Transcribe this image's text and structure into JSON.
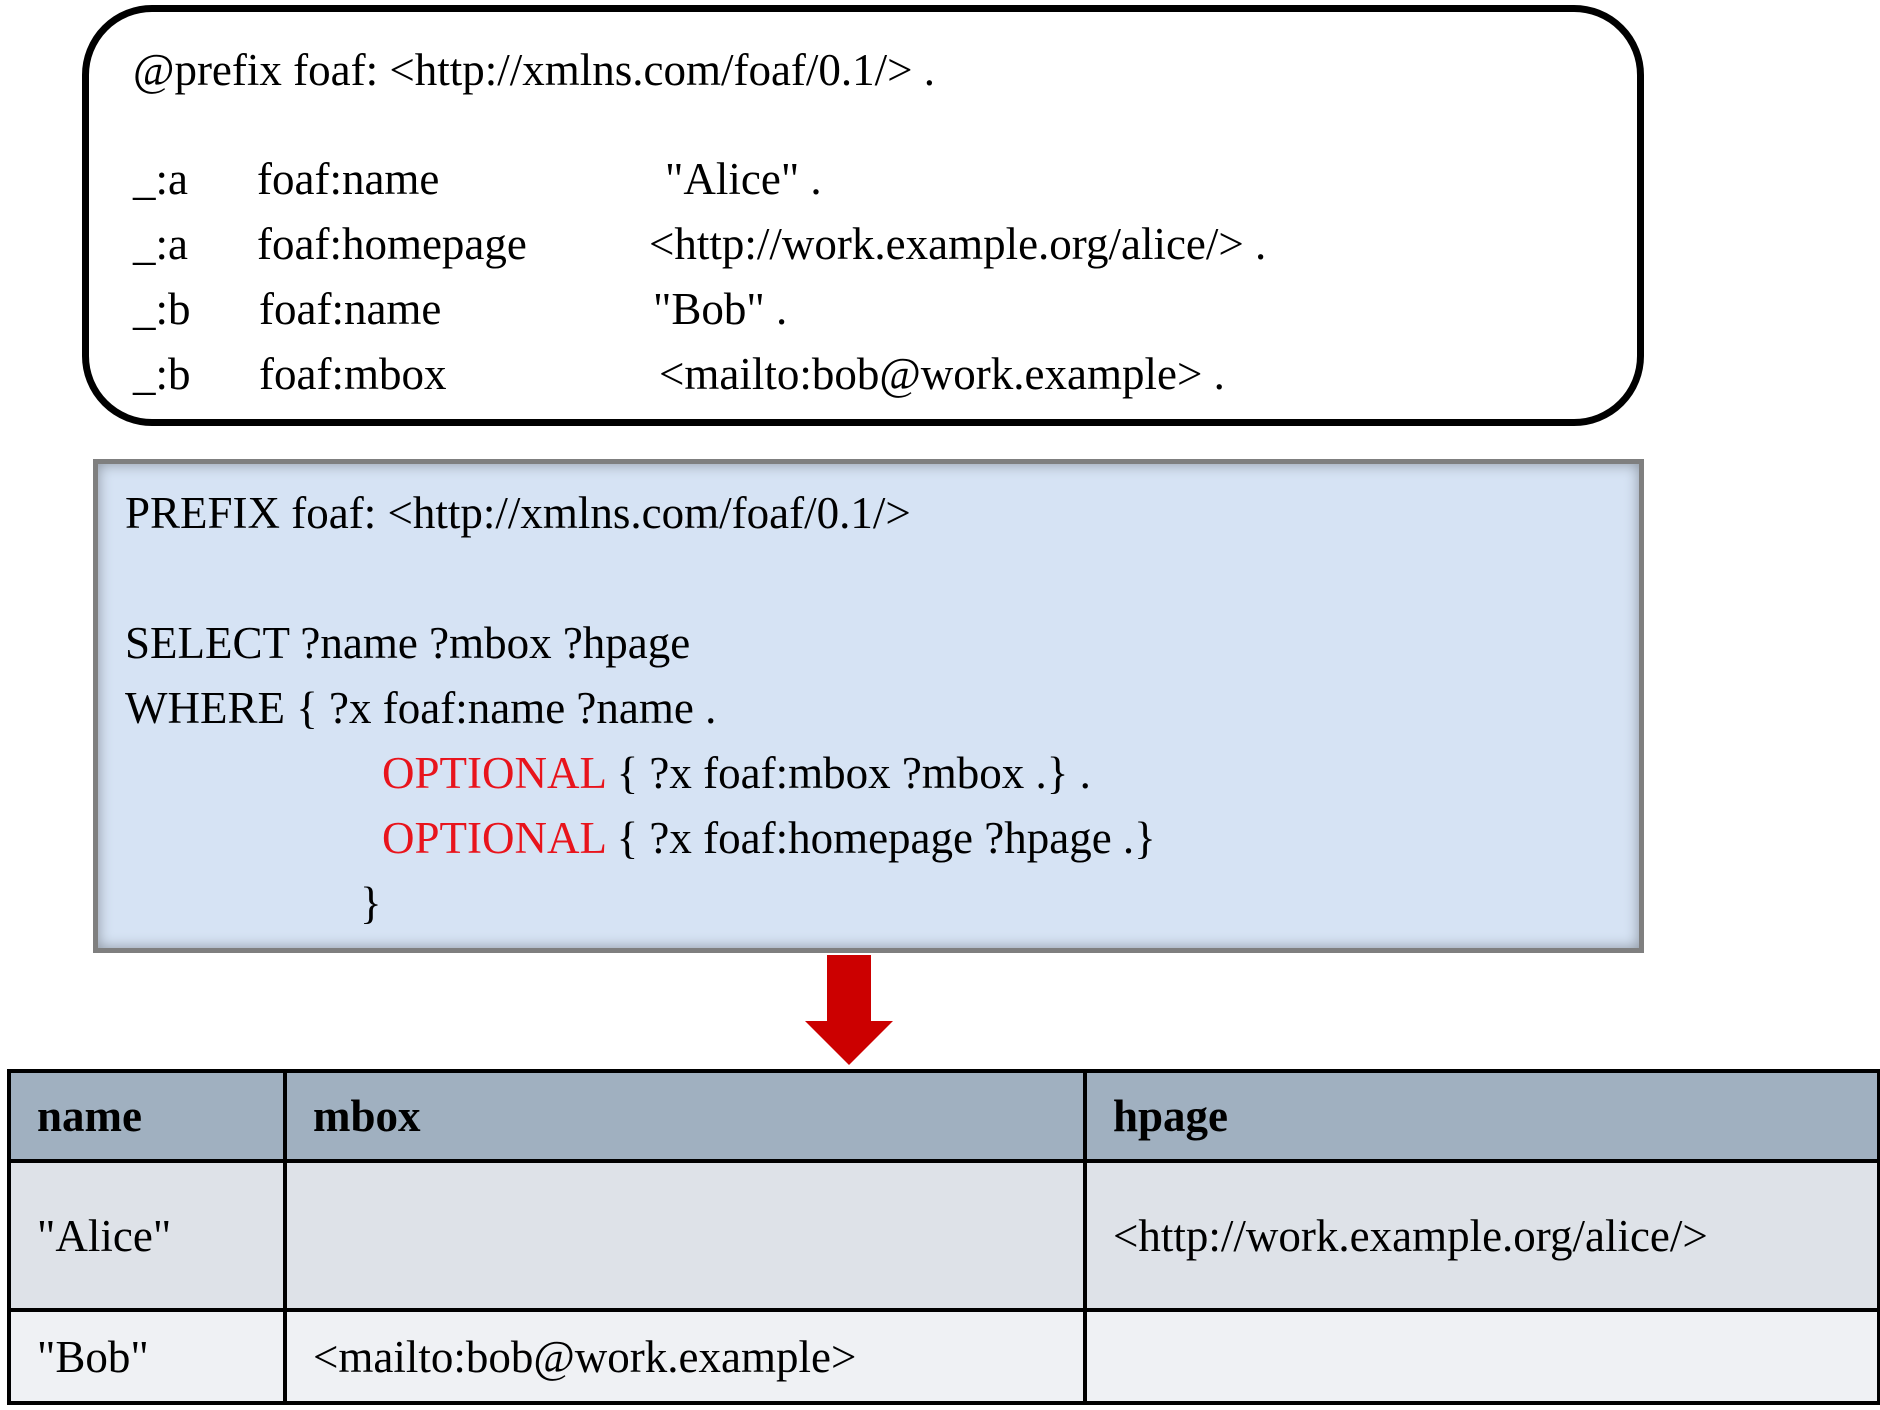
{
  "data_box": {
    "prefix_line": "@prefix foaf: <http://xmlns.com/foaf/0.1/> .",
    "triples": [
      {
        "subject": "_:a",
        "predicate": "foaf:name",
        "object": "\"Alice\" ."
      },
      {
        "subject": "_:a",
        "predicate": "foaf:homepage",
        "object": "<http://work.example.org/alice/> ."
      },
      {
        "subject": "_:b",
        "predicate": "foaf:name",
        "object": "\"Bob\" ."
      },
      {
        "subject": "_:b",
        "predicate": "foaf:mbox",
        "object": "<mailto:bob@work.example> ."
      }
    ]
  },
  "query_box": {
    "prefix_line": "PREFIX foaf: <http://xmlns.com/foaf/0.1/>",
    "select_line": "SELECT ?name ?mbox ?hpage",
    "where_line": "WHERE { ?x foaf:name ?name .",
    "optional_keyword": "OPTIONAL",
    "optional_1_rest": " { ?x foaf:mbox ?mbox .} .",
    "optional_2_rest": " { ?x foaf:homepage ?hpage .}",
    "closing_brace": "}",
    "background_color": "#d6e3f4",
    "keyword_color": "#e8141c"
  },
  "arrow": {
    "color": "#cc0000",
    "direction": "down"
  },
  "result_table": {
    "headers": [
      "name",
      "mbox",
      "hpage"
    ],
    "rows": [
      [
        "\"Alice\"",
        "",
        "<http://work.example.org/alice/>"
      ],
      [
        "\"Bob\"",
        "<mailto:bob@work.example>",
        ""
      ]
    ],
    "header_color": "#a0b0c0"
  }
}
